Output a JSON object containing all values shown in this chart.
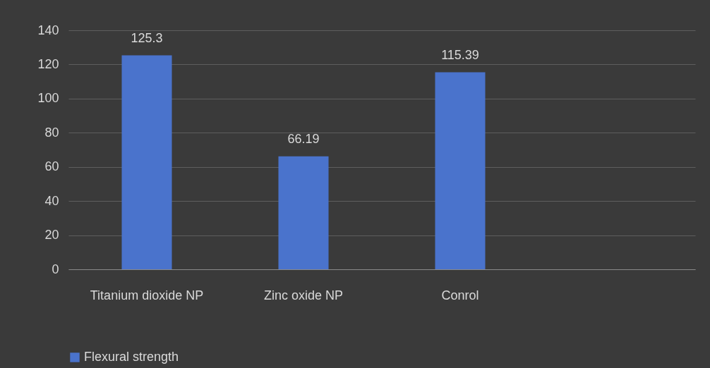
{
  "chart_data": {
    "type": "bar",
    "categories": [
      "Titanium dioxide NP",
      "Zinc oxide NP",
      "Conrol",
      null
    ],
    "series": [
      {
        "name": "Flexural strength",
        "color": "#4a73cc",
        "values": [
          125.3,
          66.19,
          115.39,
          null
        ]
      }
    ],
    "ylim": [
      0,
      140
    ],
    "yticks": [
      0,
      20,
      40,
      60,
      80,
      100,
      120,
      140
    ],
    "grid": "y",
    "legend": "bottom",
    "data_labels": true
  }
}
